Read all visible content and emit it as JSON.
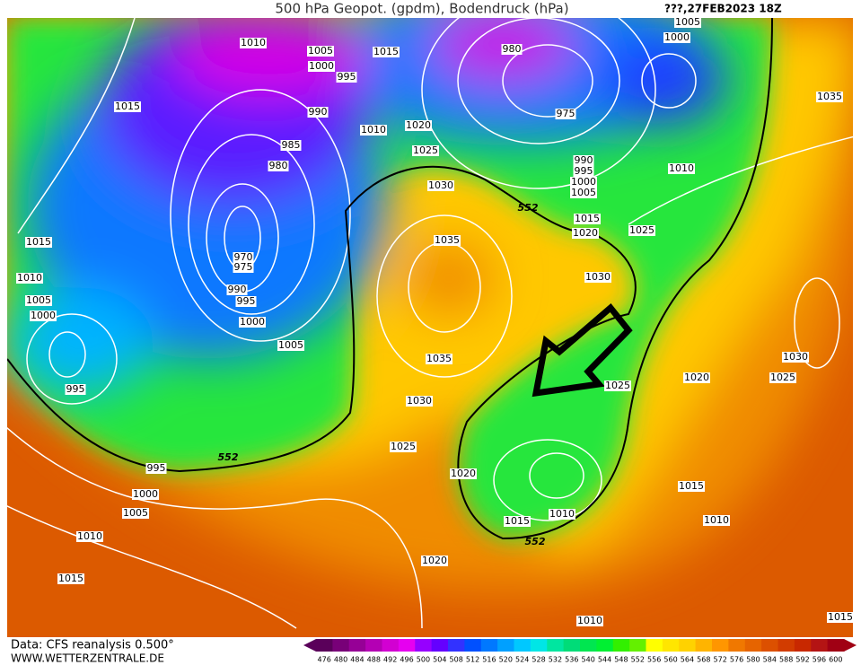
{
  "header": {
    "title": "500 hPa Geopot. (gpdm), Bodendruck (hPa)",
    "date": "???,27FEB2023 18Z"
  },
  "footer": {
    "source": "Data: CFS reanalysis 0.500°",
    "site": "WWW.WETTERZENTRALE.DE"
  },
  "isobar_labels": [
    1010,
    1005,
    1015,
    1000,
    995,
    980,
    1005,
    1000,
    1015,
    990,
    975,
    1010,
    1020,
    985,
    1025,
    980,
    990,
    995,
    1000,
    1005,
    1010,
    1035,
    1030,
    552,
    1015,
    1020,
    1025,
    1015,
    970,
    975,
    1035,
    1010,
    1030,
    990,
    995,
    1005,
    1000,
    1000,
    1005,
    1035,
    1030,
    1020,
    1025,
    1025,
    995,
    1030,
    1025,
    552,
    995,
    1020,
    1000,
    1015,
    1005,
    1010,
    1015,
    1010,
    552,
    1010,
    1020,
    1015,
    1010,
    1015
  ],
  "colorbar": {
    "labels": [
      476,
      480,
      484,
      488,
      492,
      496,
      500,
      504,
      508,
      512,
      516,
      520,
      524,
      528,
      532,
      536,
      540,
      544,
      548,
      552,
      556,
      560,
      564,
      568,
      572,
      576,
      580,
      584,
      588,
      592,
      596,
      600
    ],
    "colors": [
      "#5a005a",
      "#780078",
      "#960096",
      "#b400b4",
      "#d200d2",
      "#e600f0",
      "#9600ff",
      "#6400ff",
      "#3232ff",
      "#0050ff",
      "#0078ff",
      "#00a0ff",
      "#00c8ff",
      "#00e6e6",
      "#00e6a0",
      "#00dc78",
      "#00e650",
      "#00f032",
      "#32f000",
      "#64f000",
      "#ffff00",
      "#ffe600",
      "#ffd200",
      "#ffb400",
      "#ff9600",
      "#f07800",
      "#e66400",
      "#dc5000",
      "#d23c00",
      "#c82800",
      "#b41414",
      "#a00014"
    ]
  }
}
